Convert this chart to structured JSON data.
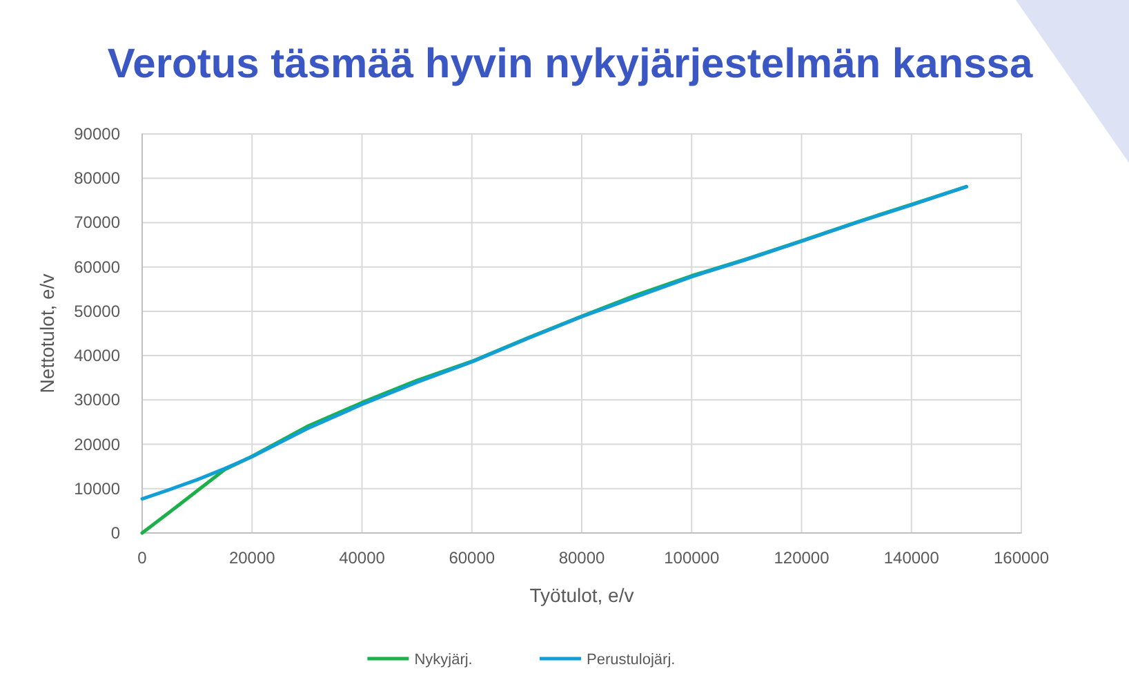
{
  "chart_data": {
    "type": "line",
    "title": "Verotus täsmää hyvin nykyjärjestelmän kanssa",
    "xlabel": "Työtulot, e/v",
    "ylabel": "Nettotulot, e/v",
    "xlim": [
      0,
      160000
    ],
    "xticks": [
      0,
      20000,
      40000,
      60000,
      80000,
      100000,
      120000,
      140000,
      160000
    ],
    "ylim": [
      0,
      90000
    ],
    "yticks": [
      0,
      10000,
      20000,
      30000,
      40000,
      50000,
      60000,
      70000,
      80000,
      90000
    ],
    "grid": true,
    "legend": "bottom",
    "marker": "none",
    "line_style": "solid",
    "series": [
      {
        "name": "Nykyjärj.",
        "color": "#1db04a",
        "x": [
          0,
          5000,
          10000,
          15000,
          20000,
          30000,
          40000,
          50000,
          60000,
          70000,
          80000,
          90000,
          100000,
          110000,
          120000,
          130000,
          140000,
          150000
        ],
        "values": [
          0,
          4700,
          9500,
          14300,
          17300,
          24000,
          29400,
          34400,
          38700,
          43900,
          48900,
          53700,
          58000,
          61800,
          65900,
          70100,
          74100,
          78100
        ]
      },
      {
        "name": "Perustulojärj.",
        "color": "#119fd6",
        "x": [
          0,
          5000,
          10000,
          15000,
          20000,
          30000,
          40000,
          50000,
          60000,
          70000,
          80000,
          90000,
          100000,
          110000,
          120000,
          130000,
          140000,
          150000
        ],
        "values": [
          7700,
          9800,
          12000,
          14500,
          17200,
          23500,
          29000,
          34000,
          38600,
          43800,
          48800,
          53300,
          57800,
          61700,
          65800,
          70000,
          74000,
          78100
        ]
      }
    ]
  }
}
